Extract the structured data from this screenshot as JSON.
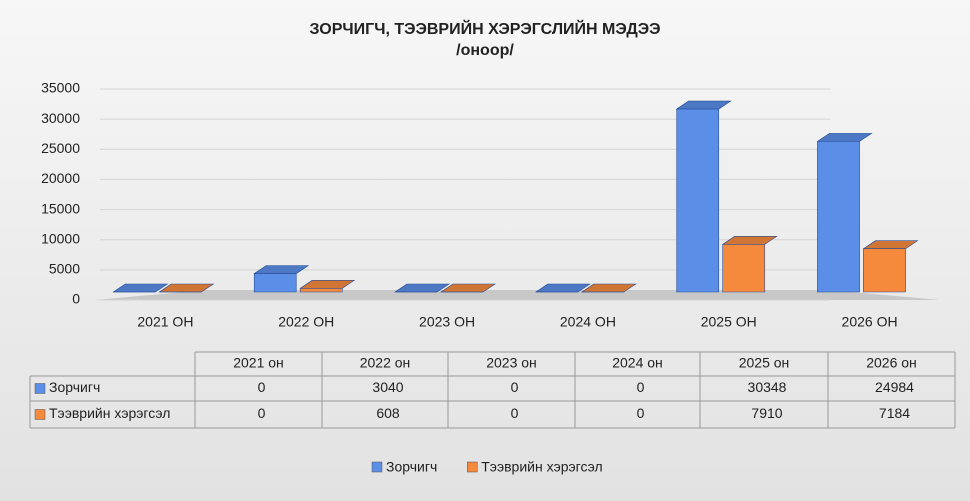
{
  "chart_data": {
    "type": "bar3d",
    "title": "ЗОРЧИГЧ, ТЭЭВРИЙН ХЭРЭГСЛИЙН МЭДЭЭ",
    "subtitle": "/оноор/",
    "categories": [
      "2021 ОН",
      "2022 ОН",
      "2023 ОН",
      "2024 ОН",
      "2025 ОН",
      "2026 ОН"
    ],
    "table_categories": [
      "2021 он",
      "2022 он",
      "2023 он",
      "2024 он",
      "2025 он",
      "2026 он"
    ],
    "series": [
      {
        "name": "Зорчигч",
        "color": "#5b8ee6",
        "values": [
          0,
          3040,
          0,
          0,
          30348,
          24984
        ]
      },
      {
        "name": "Тээврийн хэрэгсэл",
        "color": "#f58a3c",
        "values": [
          0,
          608,
          0,
          0,
          7910,
          7184
        ]
      }
    ],
    "ylim": [
      0,
      35000
    ],
    "yticks": [
      0,
      5000,
      10000,
      15000,
      20000,
      25000,
      30000,
      35000
    ],
    "grid": true,
    "legend": "bottom"
  }
}
